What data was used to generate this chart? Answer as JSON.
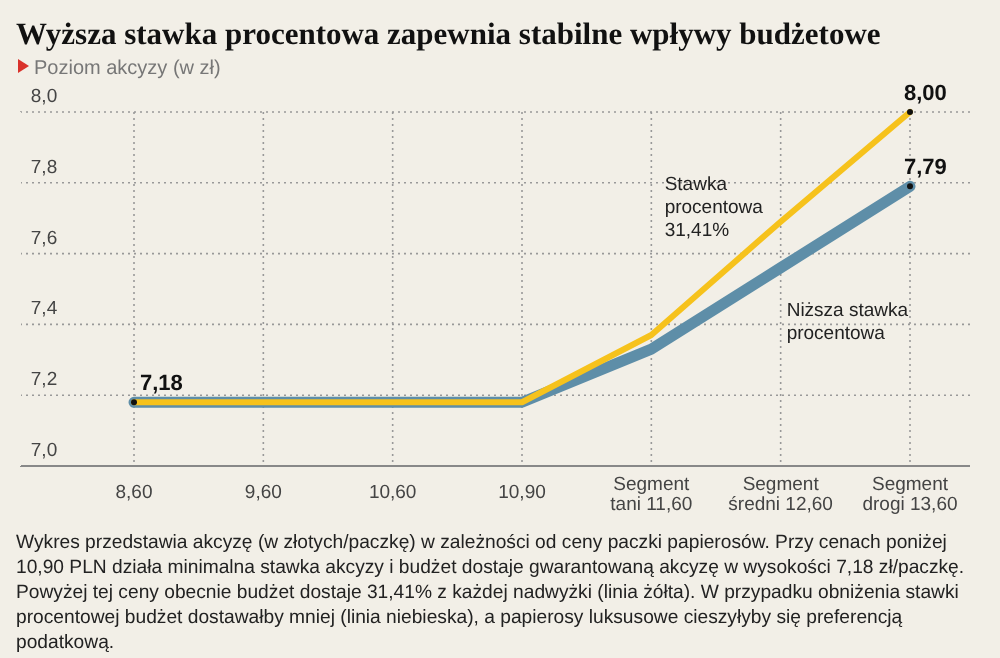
{
  "chart_data": {
    "type": "line",
    "title": "Wyższa stawka procentowa zapewnia stabilne wpływy budżetowe",
    "subtitle": "Poziom akcyzy (w zł)",
    "categories": [
      "8,60",
      "9,60",
      "10,60",
      "10,90",
      "Segment\ntani 11,60",
      "Segment\nśredni 12,60",
      "Segment\ndrogi 13,60"
    ],
    "series": [
      {
        "name": "Stawka procentowa 31,41%",
        "color": "#f6c21c",
        "values": [
          7.18,
          7.18,
          7.18,
          7.18,
          7.37,
          7.69,
          8.0
        ],
        "value_labels": [
          null,
          null,
          null,
          null,
          null,
          null,
          "8,00"
        ]
      },
      {
        "name": "Niższa stawka procentowa",
        "color": "#5e8ea8",
        "values": [
          7.18,
          7.18,
          7.18,
          7.18,
          7.33,
          7.56,
          7.79
        ],
        "value_labels": [
          "7,18",
          null,
          null,
          null,
          null,
          null,
          "7,79"
        ]
      }
    ],
    "ylim": [
      7.0,
      8.0
    ],
    "yticks": [
      {
        "value": 7.0,
        "label": "7,0"
      },
      {
        "value": 7.2,
        "label": "7,2"
      },
      {
        "value": 7.4,
        "label": "7,4"
      },
      {
        "value": 7.6,
        "label": "7,6"
      },
      {
        "value": 7.8,
        "label": "7,8"
      },
      {
        "value": 8.0,
        "label": "8,0"
      }
    ],
    "grid": true,
    "marker": "none",
    "line_style": "solid",
    "legend": false,
    "annotations": [
      "Wykres przedstawia akcyzę (w złotych/paczkę) w zależności od ceny paczki papierosów. Przy cenach poniżej 10,90 PLN działa minimalna stawka akcyzy i budżet dostaje gwarantowaną akcyzę w wysokości 7,18 zł/paczkę. Powyżej tej ceny obecnie budżet dostaje 31,41% z każdej nadwyżki (linia żółta). W przypadku obniżenia stawki procentowej budżet dostawałby mniej (linia niebieska), a papierosy luksusowe cieszyłyby się preferencją podatkową."
    ]
  }
}
